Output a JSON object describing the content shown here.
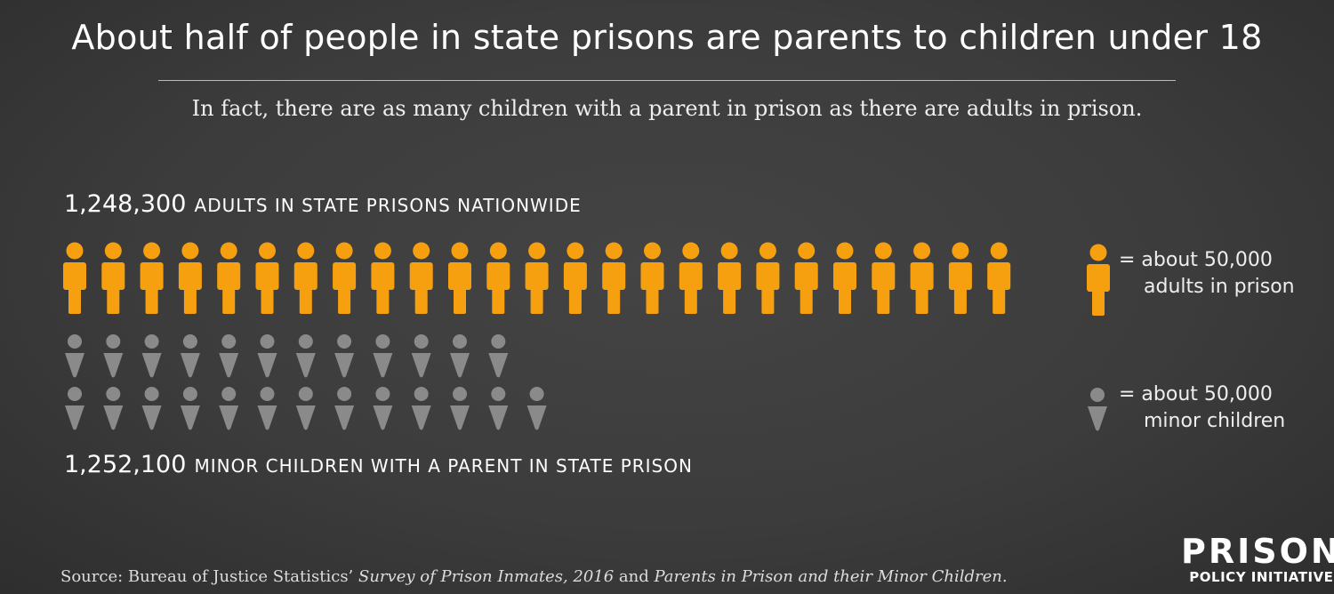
{
  "title": "About half of people in state prisons are parents to children under 18",
  "subtitle": "In fact, there are as many children with a parent in prison as there are adults in prison.",
  "chart_data": {
    "type": "pictograph",
    "unit_value": 50000,
    "series": [
      {
        "name": "adults in state prisons nationwide",
        "count_text": "1,248,300",
        "label_text": "adults in state prisons nationwide",
        "value": 1248300,
        "icons": 25,
        "color": "#f7a00f",
        "icon": "adult-person-icon"
      },
      {
        "name": "minor children with a parent in state prison",
        "count_text": "1,252,100",
        "label_text": "minor children with a parent in state prison",
        "value": 1252100,
        "icons": 25,
        "icon_rows": [
          12,
          13
        ],
        "color": "#8a8a8a",
        "icon": "child-person-icon"
      }
    ],
    "legend": [
      {
        "line1": "= about 50,000",
        "line2": "adults in prison",
        "color": "#f7a00f"
      },
      {
        "line1": "= about 50,000",
        "line2": "minor children",
        "color": "#8a8a8a"
      }
    ]
  },
  "source": {
    "prefix": "Source: Bureau of Justice Statistics’ ",
    "italic1": "Survey of Prison Inmates, 2016",
    "middle": " and ",
    "italic2": "Parents in Prison and their Minor Children",
    "suffix": "."
  },
  "logo": {
    "line1": "PRISON",
    "line2": "POLICY INITIATIVE"
  },
  "colors": {
    "background": "#3c3c3c",
    "adult": "#f7a00f",
    "child": "#8a8a8a"
  }
}
